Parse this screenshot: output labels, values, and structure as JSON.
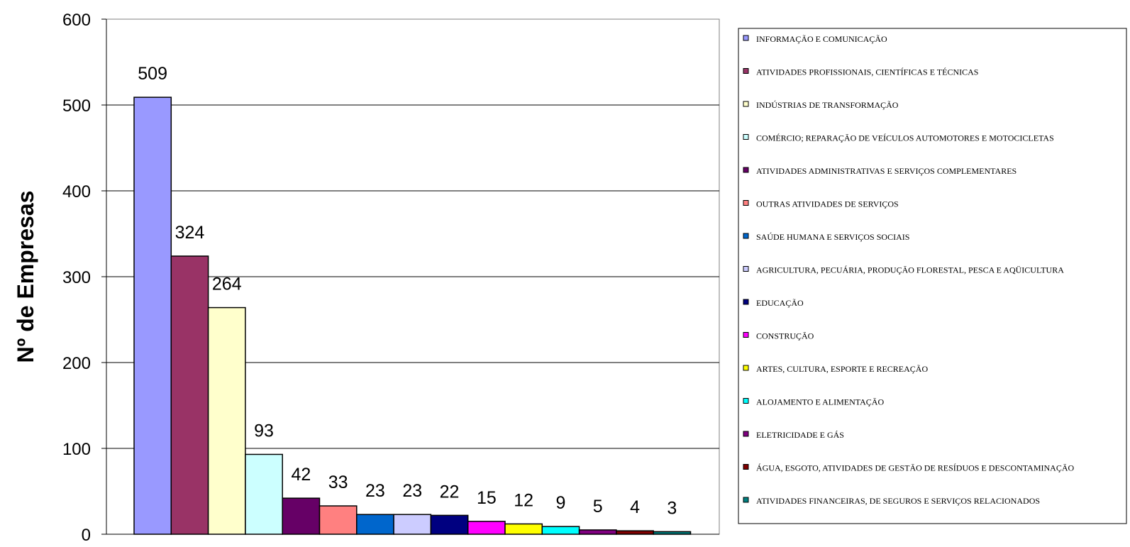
{
  "chart_data": {
    "type": "bar",
    "title": "",
    "ylabel": "Nº de Empresas",
    "xlabel": "",
    "ylim": [
      0,
      600
    ],
    "yticks": [
      0,
      100,
      200,
      300,
      400,
      500,
      600
    ],
    "grid": true,
    "legend_position": "right",
    "categories": [
      "INFORMAÇÃO E COMUNICAÇÃO",
      "ATIVIDADES PROFISSIONAIS, CIENTÍFICAS E TÉCNICAS",
      "INDÚSTRIAS DE TRANSFORMAÇÃO",
      "COMÉRCIO; REPARAÇÃO DE VEÍCULOS AUTOMOTORES E MOTOCICLETAS",
      "ATIVIDADES ADMINISTRATIVAS E SERVIÇOS COMPLEMENTARES",
      "OUTRAS ATIVIDADES DE SERVIÇOS",
      "SAÚDE HUMANA E SERVIÇOS SOCIAIS",
      "AGRICULTURA, PECUÁRIA, PRODUÇÃO FLORESTAL, PESCA E AQÜICULTURA",
      "EDUCAÇÃO",
      "CONSTRUÇÃO",
      "ARTES, CULTURA, ESPORTE E RECREAÇÃO",
      "ALOJAMENTO E ALIMENTAÇÃO",
      "ELETRICIDADE E GÁS",
      "ÁGUA, ESGOTO, ATIVIDADES DE GESTÃO DE RESÍDUOS E DESCONTAMINAÇÃO",
      "ATIVIDADES FINANCEIRAS, DE SEGUROS E SERVIÇOS RELACIONADOS"
    ],
    "values": [
      509,
      324,
      264,
      93,
      42,
      33,
      23,
      23,
      22,
      15,
      12,
      9,
      5,
      4,
      3
    ],
    "colors": [
      "#9999FF",
      "#993366",
      "#FFFFCC",
      "#CCFFFF",
      "#660066",
      "#FF8080",
      "#0066CC",
      "#CCCCFF",
      "#000080",
      "#FF00FF",
      "#FFFF00",
      "#00FFFF",
      "#800080",
      "#800000",
      "#008080"
    ]
  }
}
